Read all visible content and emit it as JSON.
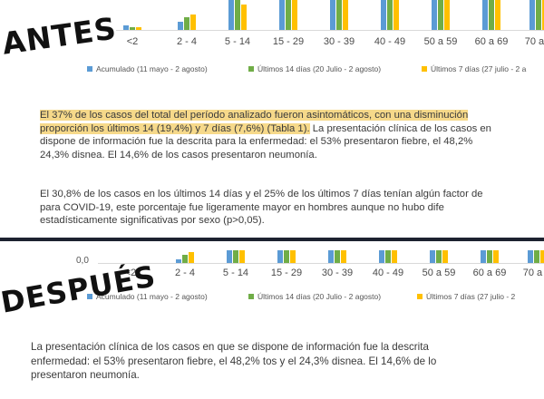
{
  "stamps": {
    "before": "ANTES",
    "after": "DESPUÉS"
  },
  "colors": {
    "blue": "#5b9bd5",
    "green": "#70ad47",
    "yellow": "#ffc000",
    "highlight": "#f6d98a",
    "separator": "#1d2230"
  },
  "chart_before": {
    "categories": [
      "<2",
      "2 - 4",
      "5 - 14",
      "15 - 29",
      "30 - 39",
      "40 - 49",
      "50 a 59",
      "60 a 69",
      "70 a 7"
    ],
    "legend": [
      "Acumulado (11 mayo - 2 agosto)",
      "Últimos 14 días (20 Julio - 2 agosto)",
      "Últimos 7 días (27 julio - 2 a"
    ]
  },
  "chart_after": {
    "y_label": "0,0",
    "categories": [
      "<2",
      "2 - 4",
      "5 - 14",
      "15 - 29",
      "30 - 39",
      "40 - 49",
      "50 a 59",
      "60 a 69",
      "70 a 7"
    ],
    "legend": [
      "Acumulado (11 mayo - 2 agosto)",
      "Últimos 14 días (20 Julio - 2 agosto)",
      "Últimos 7 días (27 julio - 2"
    ]
  },
  "before_text": {
    "p1_highlight_1": "El 37% de los casos del total del período analizado fueron asintomáticos, con una disminución",
    "p1_highlight_2": "proporción los últimos 14 (19,4%) y 7 días (7,6%) (Tabla 1).",
    "p1_rest_2": " La presentación clínica de los casos en",
    "p1_line3": "dispone de información fue la descrita para la enfermedad: el 53% presentaron fiebre, el 48,2%",
    "p1_line4": "24,3% disnea. El 14,6% de los casos presentaron neumonía.",
    "p2_line1": "El 30,8% de los casos en los últimos 14 días y el 25% de los últimos 7 días tenían algún factor de",
    "p2_line2": "para COVID-19, este porcentaje fue ligeramente mayor en hombres aunque no hubo dife",
    "p2_line3": "estadísticamente significativas por sexo (p>0,05)."
  },
  "after_text": {
    "line1": "La presentación clínica de los casos en que se dispone de información fue la descrita",
    "line2": "enfermedad: el 53% presentaron fiebre, el 48,2% tos y el 24,3% disnea. El 14,6% de lo",
    "line3": "presentaron neumonía."
  }
}
